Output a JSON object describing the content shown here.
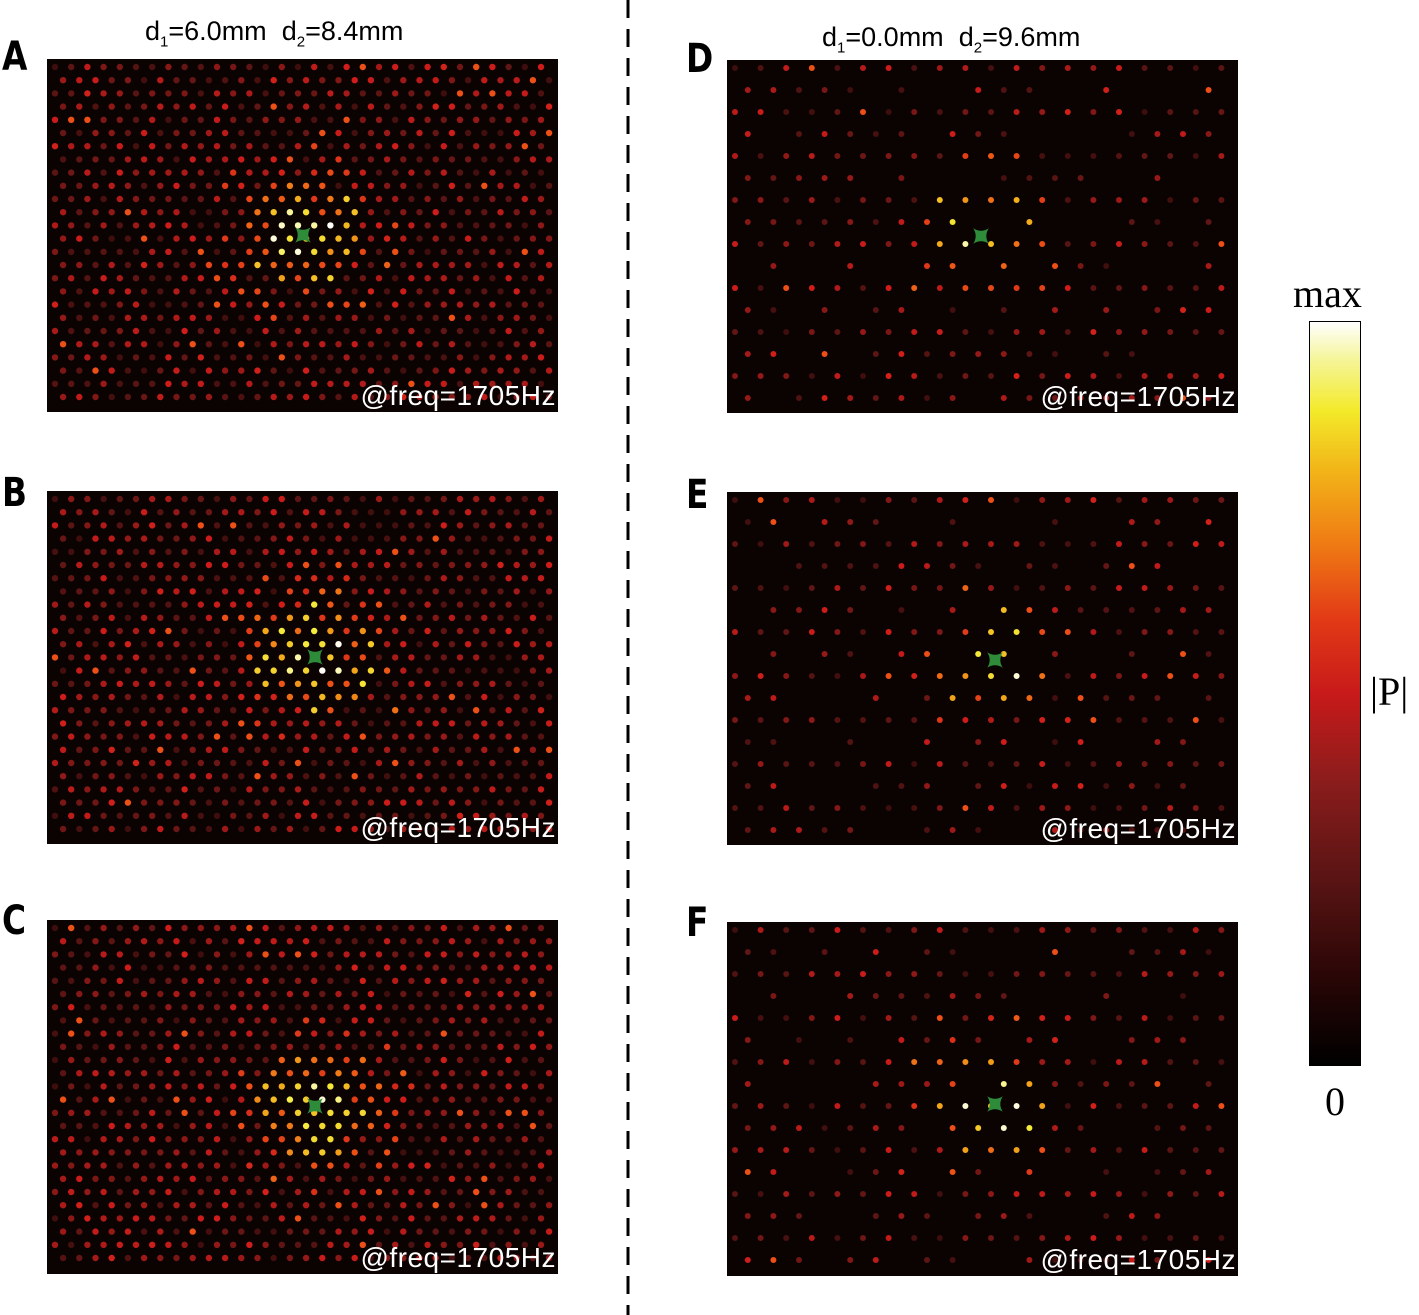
{
  "figure": {
    "left_title": {
      "d1": "6.0mm",
      "d2": "8.4mm"
    },
    "right_title": {
      "d1": "0.0mm",
      "d2": "9.6mm"
    },
    "panels": [
      {
        "letter": "A",
        "freq_label": "@freq=1705Hz",
        "lattice": "dense",
        "hotspot": "ring"
      },
      {
        "letter": "B",
        "freq_label": "@freq=1705Hz",
        "lattice": "dense",
        "hotspot": "ring-offset"
      },
      {
        "letter": "C",
        "freq_label": "@freq=1705Hz",
        "lattice": "dense",
        "hotspot": "ring-low"
      },
      {
        "letter": "D",
        "freq_label": "@freq=1705Hz",
        "lattice": "sparse",
        "hotspot": "hex-wide"
      },
      {
        "letter": "E",
        "freq_label": "@freq=1705Hz",
        "lattice": "sparse",
        "hotspot": "row"
      },
      {
        "letter": "F",
        "freq_label": "@freq=1705Hz",
        "lattice": "sparse",
        "hotspot": "small"
      }
    ],
    "colorbar": {
      "max_label": "max",
      "min_label": "0",
      "quantity_label": "|P|"
    },
    "colors": {
      "background": "#0b0202",
      "source_marker": "#2e8b3a"
    }
  }
}
